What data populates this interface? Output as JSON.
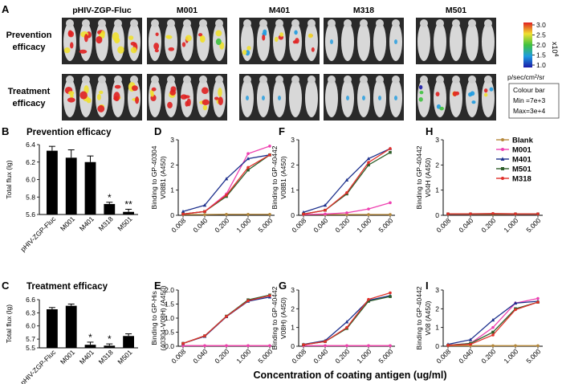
{
  "panel_a": {
    "letter": "A",
    "group_labels": [
      "pHIV-ZGP-Fluc",
      "M001",
      "M401",
      "M318",
      "M501"
    ],
    "row_labels": [
      [
        "Prevention",
        "efficacy"
      ],
      [
        "Treatment",
        "efficacy"
      ]
    ],
    "colorbar": {
      "ticks": [
        "3.0",
        "2.5",
        "2.0",
        "1.5",
        "1.0"
      ],
      "multiplier": "x10",
      "exponent": "4",
      "unit": "p/sec/cm²/sr",
      "legend_lines": [
        "Colour bar",
        "Min =7e+3",
        "Max=3e+4"
      ]
    }
  },
  "chart_data": [
    {
      "id": "B",
      "type": "bar",
      "title": "Prevention efficacy",
      "ylabel": "Total flux (lg)",
      "categories": [
        "pHIV-ZGP-Fluc",
        "M001",
        "M401",
        "M318",
        "M501"
      ],
      "values": [
        6.33,
        6.25,
        6.2,
        5.72,
        5.63
      ],
      "errors": [
        0.05,
        0.09,
        0.07,
        0.02,
        0.03
      ],
      "significance": [
        "",
        "",
        "",
        "*",
        "**"
      ],
      "ylim": [
        5.6,
        6.4
      ],
      "yticks": [
        "5.6",
        "5.8",
        "6.0",
        "6.2",
        "6.4"
      ]
    },
    {
      "id": "C",
      "type": "bar",
      "title": "Treatment efficacy",
      "ylabel": "Total flux (lg)",
      "categories": [
        "pHIV-ZGP-Fluc",
        "M001",
        "M401",
        "M318",
        "M501"
      ],
      "values": [
        6.38,
        6.46,
        5.57,
        5.55,
        5.77
      ],
      "errors": [
        0.04,
        0.04,
        0.06,
        0.04,
        0.05
      ],
      "significance": [
        "",
        "",
        "*",
        "*",
        ""
      ],
      "ylim": [
        5.5,
        6.6
      ],
      "yticks": [
        "5.5",
        "5.7",
        "6.0",
        "6.3",
        "6.6"
      ]
    },
    {
      "id": "D",
      "type": "line",
      "ylabel": [
        "Binding to GP-40304",
        "V08B1 (A450)"
      ],
      "x": [
        "0.008",
        "0.040",
        "0.200",
        "1.000",
        "5.000"
      ],
      "ylim": [
        0,
        3
      ],
      "yticks": [
        "0",
        "1",
        "2",
        "3"
      ],
      "series": [
        {
          "name": "Blank",
          "values": [
            0.03,
            0.03,
            0.04,
            0.04,
            0.04
          ]
        },
        {
          "name": "M001",
          "values": [
            0.05,
            0.15,
            0.85,
            2.45,
            2.75
          ]
        },
        {
          "name": "M401",
          "values": [
            0.15,
            0.4,
            1.45,
            2.25,
            2.4
          ]
        },
        {
          "name": "M501",
          "values": [
            0.05,
            0.15,
            0.75,
            1.8,
            2.4
          ]
        },
        {
          "name": "M318",
          "values": [
            0.05,
            0.15,
            0.8,
            1.9,
            2.4
          ]
        }
      ]
    },
    {
      "id": "E",
      "type": "line",
      "ylabel": [
        "Binding to GP-His",
        "(40304-V08H) (A450)"
      ],
      "x": [
        "0.008",
        "0.040",
        "0.200",
        "1.000",
        "5.000"
      ],
      "ylim": [
        0,
        2
      ],
      "yticks": [
        "0.0",
        "0.5",
        "1.0",
        "1.5",
        "2.0"
      ],
      "series": [
        {
          "name": "Blank",
          "values": [
            0.02,
            0.02,
            0.02,
            0.02,
            0.02
          ]
        },
        {
          "name": "M001",
          "values": [
            0.02,
            0.02,
            0.02,
            0.02,
            0.02
          ]
        },
        {
          "name": "M401",
          "values": [
            0.1,
            0.35,
            1.05,
            1.6,
            1.75
          ]
        },
        {
          "name": "M501",
          "values": [
            0.1,
            0.37,
            1.07,
            1.65,
            1.82
          ]
        },
        {
          "name": "M318",
          "values": [
            0.1,
            0.37,
            1.06,
            1.62,
            1.8
          ]
        }
      ]
    },
    {
      "id": "F",
      "type": "line",
      "ylabel": [
        "Binding to GP-40442",
        "V08B1 (A450)"
      ],
      "x": [
        "0.008",
        "0.040",
        "0.200",
        "1.000",
        "5.000"
      ],
      "ylim": [
        0,
        3
      ],
      "yticks": [
        "0",
        "1",
        "2",
        "3"
      ],
      "series": [
        {
          "name": "Blank",
          "values": [
            0.03,
            0.03,
            0.03,
            0.03,
            0.03
          ]
        },
        {
          "name": "M001",
          "values": [
            0.03,
            0.05,
            0.1,
            0.25,
            0.5
          ]
        },
        {
          "name": "M401",
          "values": [
            0.12,
            0.4,
            1.4,
            2.25,
            2.65
          ]
        },
        {
          "name": "M501",
          "values": [
            0.05,
            0.2,
            0.85,
            2.0,
            2.5
          ]
        },
        {
          "name": "M318",
          "values": [
            0.05,
            0.2,
            0.9,
            2.1,
            2.65
          ]
        }
      ]
    },
    {
      "id": "G",
      "type": "line",
      "ylabel": [
        "Binding to GP-40442",
        "V08H) (A450)"
      ],
      "x": [
        "0.008",
        "0.040",
        "0.200",
        "1.000",
        "5.000"
      ],
      "ylim": [
        0,
        3
      ],
      "yticks": [
        "0",
        "1",
        "2",
        "3"
      ],
      "series": [
        {
          "name": "Blank",
          "values": [
            0.03,
            0.03,
            0.03,
            0.03,
            0.03
          ]
        },
        {
          "name": "M001",
          "values": [
            0.03,
            0.03,
            0.03,
            0.03,
            0.03
          ]
        },
        {
          "name": "M401",
          "values": [
            0.1,
            0.3,
            1.3,
            2.45,
            2.7
          ]
        },
        {
          "name": "M501",
          "values": [
            0.08,
            0.25,
            0.95,
            2.4,
            2.65
          ]
        },
        {
          "name": "M318",
          "values": [
            0.08,
            0.25,
            1.0,
            2.5,
            2.85
          ]
        }
      ]
    },
    {
      "id": "H",
      "type": "line",
      "ylabel": [
        "Binding to GP-40442",
        "V04H (A450)"
      ],
      "x": [
        "0.008",
        "0.040",
        "0.200",
        "1.000",
        "5.000"
      ],
      "ylim": [
        0,
        3
      ],
      "yticks": [
        "0",
        "1",
        "2",
        "3"
      ],
      "series": [
        {
          "name": "Blank",
          "values": [
            0.03,
            0.03,
            0.03,
            0.03,
            0.03
          ]
        },
        {
          "name": "M001",
          "values": [
            0.04,
            0.04,
            0.05,
            0.04,
            0.04
          ]
        },
        {
          "name": "M401",
          "values": [
            0.05,
            0.05,
            0.06,
            0.05,
            0.05
          ]
        },
        {
          "name": "M501",
          "values": [
            0.05,
            0.05,
            0.05,
            0.05,
            0.05
          ]
        },
        {
          "name": "M318",
          "values": [
            0.06,
            0.06,
            0.07,
            0.06,
            0.06
          ]
        }
      ]
    },
    {
      "id": "I",
      "type": "line",
      "ylabel": [
        "Binding to GP-40442",
        "V08 (A450)"
      ],
      "x": [
        "0.008",
        "0.040",
        "0.200",
        "1.000",
        "5.000"
      ],
      "ylim": [
        0,
        3
      ],
      "yticks": [
        "0",
        "1",
        "2",
        "3"
      ],
      "series": [
        {
          "name": "Blank",
          "values": [
            0.03,
            0.03,
            0.03,
            0.03,
            0.03
          ]
        },
        {
          "name": "M001",
          "values": [
            0.05,
            0.15,
            1.0,
            2.3,
            2.55
          ]
        },
        {
          "name": "M401",
          "values": [
            0.1,
            0.35,
            1.4,
            2.3,
            2.4
          ]
        },
        {
          "name": "M501",
          "values": [
            0.05,
            0.15,
            0.75,
            2.0,
            2.35
          ]
        },
        {
          "name": "M318",
          "values": [
            0.05,
            0.1,
            0.6,
            1.95,
            2.35
          ]
        }
      ]
    }
  ],
  "legend": {
    "entries": [
      "Blank",
      "M001",
      "M401",
      "M501",
      "M318"
    ],
    "colors": {
      "Blank": "#b5883a",
      "M001": "#ee40b0",
      "M401": "#1c2f8c",
      "M501": "#2e5e2a",
      "M318": "#e0302a"
    }
  },
  "x_axis_title": "Concentration of coating antigen (ug/ml)"
}
